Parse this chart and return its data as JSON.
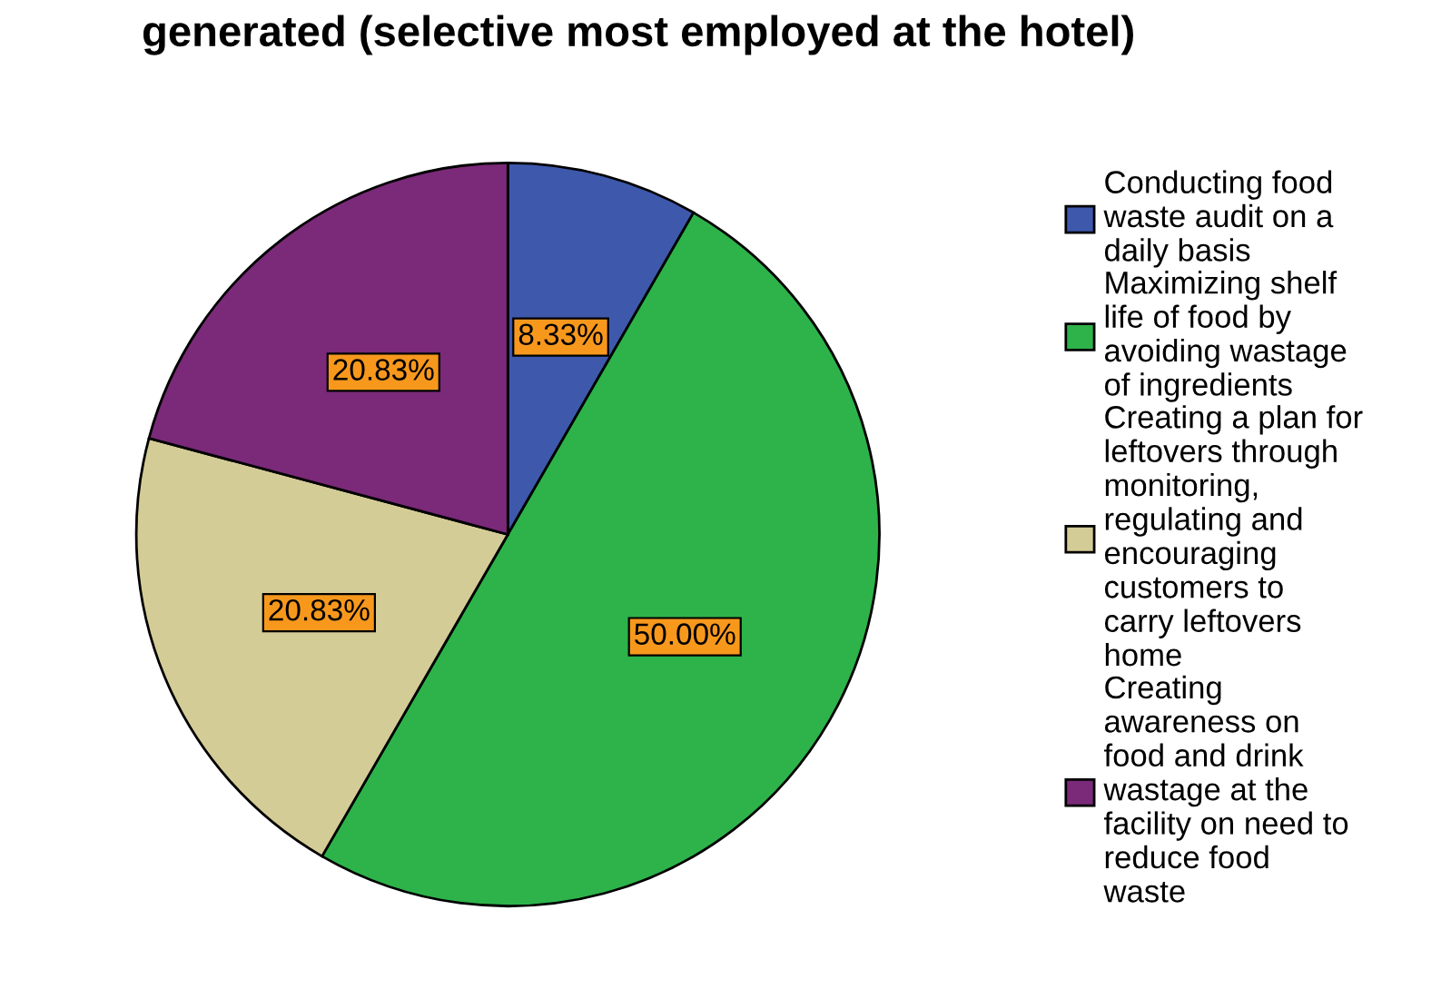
{
  "chart_data": {
    "type": "pie",
    "title": "generated (selective most employed at the hotel)",
    "categories": [
      "Conducting food\nwaste audit on a\ndaily basis",
      "Maximizing shelf\nlife of food by\navoiding wastage\nof ingredients",
      "Creating a plan for\nleftovers through\nmonitoring,\nregulating and\nencouraging\ncustomers to\ncarry leftovers\nhome",
      "Creating\nawareness on\nfood and drink\nwastage at the\nfacility on need to\nreduce food\nwaste"
    ],
    "values": [
      8.33,
      50.0,
      20.83,
      20.83
    ],
    "colors": [
      "#3e58ac",
      "#2db34a",
      "#d4cc96",
      "#7a2a78"
    ],
    "value_labels": [
      "8.33%",
      "50.00%",
      "20.83%",
      "20.83%"
    ],
    "legend": "right"
  }
}
